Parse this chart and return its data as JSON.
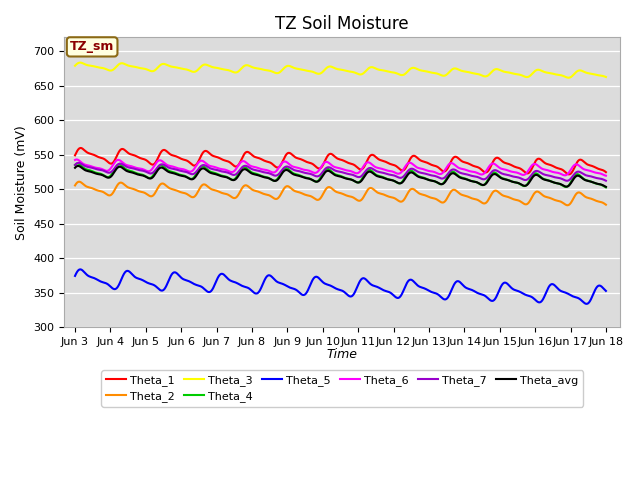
{
  "title": "TZ Soil Moisture",
  "ylabel": "Soil Moisture (mV)",
  "xlabel": "Time",
  "ylim": [
    300,
    720
  ],
  "yticks": [
    300,
    350,
    400,
    450,
    500,
    550,
    600,
    650,
    700
  ],
  "xtick_labels": [
    "Jun 3",
    "Jun 4",
    "Jun 5",
    "Jun 6",
    "Jun 7",
    "Jun 8",
    "Jun 9",
    "Jun 10",
    "Jun 11",
    "Jun 12",
    "Jun 13",
    "Jun 14",
    "Jun 15",
    "Jun 16",
    "Jun 17",
    "Jun 18"
  ],
  "background_color": "#dcdcdc",
  "legend_label": "TZ_sm",
  "series_order": [
    "Theta_1",
    "Theta_2",
    "Theta_3",
    "Theta_4",
    "Theta_5",
    "Theta_6",
    "Theta_7",
    "Theta_avg"
  ],
  "series": {
    "Theta_1": {
      "color": "#ff0000",
      "base": 549,
      "trend": -1.2,
      "amp": 8,
      "freq": 0.85,
      "phase": 0.0
    },
    "Theta_2": {
      "color": "#ff8c00",
      "base": 501,
      "trend": -1.1,
      "amp": 7,
      "freq": 0.85,
      "phase": 0.3
    },
    "Theta_3": {
      "color": "#ffff00",
      "base": 678,
      "trend": -0.8,
      "amp": 4,
      "freq": 0.85,
      "phase": 0.1
    },
    "Theta_4": {
      "color": "#00cc00",
      "base": 527,
      "trend": -1.1,
      "amp": 7,
      "freq": 0.85,
      "phase": 0.6
    },
    "Theta_5": {
      "color": "#0000ff",
      "base": 370,
      "trend": -1.6,
      "amp": 10,
      "freq": 0.75,
      "phase": 0.2
    },
    "Theta_6": {
      "color": "#ff00ff",
      "base": 534,
      "trend": -0.5,
      "amp": 6,
      "freq": 0.85,
      "phase": 0.8
    },
    "Theta_7": {
      "color": "#9900cc",
      "base": 531,
      "trend": -0.9,
      "amp": 5,
      "freq": 0.85,
      "phase": 0.4
    },
    "Theta_avg": {
      "color": "#000000",
      "base": 525,
      "trend": -1.0,
      "amp": 6,
      "freq": 0.85,
      "phase": 0.5
    }
  },
  "title_fontsize": 12,
  "label_fontsize": 9,
  "tick_fontsize": 8,
  "legend_fontsize": 8,
  "linewidth": 1.5
}
